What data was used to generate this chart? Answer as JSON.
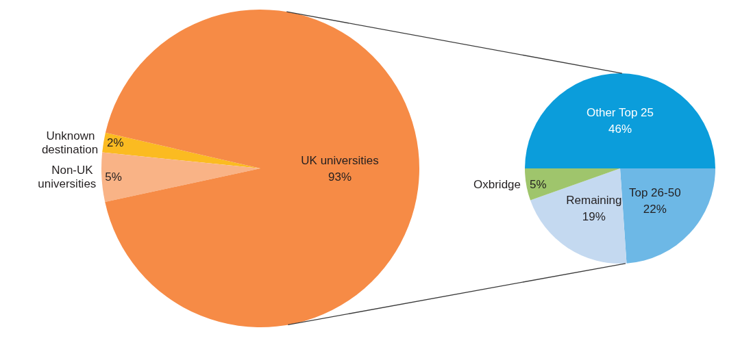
{
  "chart_data": [
    {
      "type": "pie",
      "categories": [
        "Unknown destination",
        "Non-UK universities",
        "UK universities"
      ],
      "values": [
        2,
        5,
        93
      ],
      "colors": [
        "#fbbb21",
        "#f9b386",
        "#f68b46"
      ],
      "value_labels": [
        "2%",
        "5%",
        "93%"
      ]
    },
    {
      "type": "pie",
      "categories": [
        "Other Top 25",
        "Top 26-50",
        "Remaining",
        "Oxbridge"
      ],
      "values": [
        46,
        22,
        19,
        5
      ],
      "colors": [
        "#0b9ddb",
        "#6db8e6",
        "#c4d9f0",
        "#9fc56c"
      ],
      "value_labels": [
        "46%",
        "22%",
        "19%",
        "5%"
      ]
    }
  ]
}
